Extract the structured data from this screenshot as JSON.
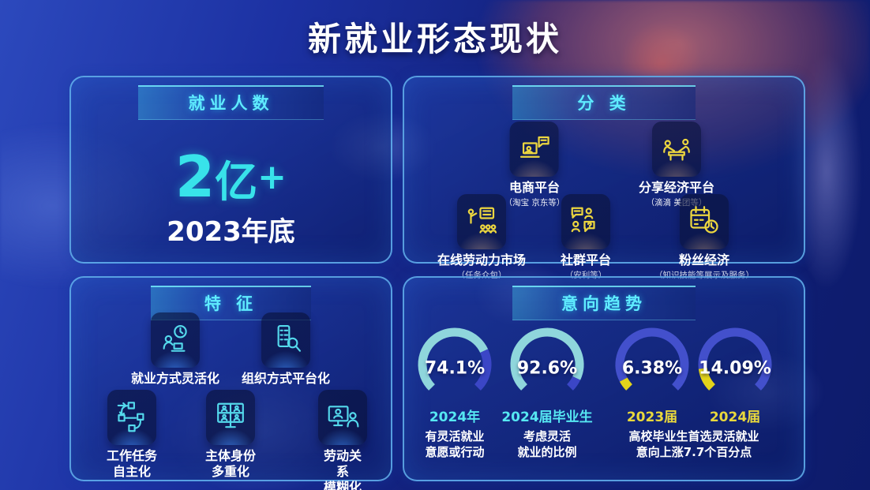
{
  "title": "新就业形态现状",
  "colors": {
    "accent_cyan": "#5FECFF",
    "number_cyan": "#38E3EA",
    "icon_yellow": "#ECD63F",
    "icon_cyan": "#54D9EC",
    "gauge_cyan": "#8FD6DC",
    "gauge_indigo": "#3B46C6",
    "gauge_yellow": "#E3D41A"
  },
  "panels": {
    "employment": {
      "header": "就业人数",
      "number_digit": "2",
      "number_unit": "亿",
      "number_suffix": "+",
      "caption": "2023年底"
    },
    "categories": {
      "header": "分 类",
      "items": [
        {
          "label": "电商平台",
          "sub": "（淘宝 京东等）",
          "icon": "ecommerce-platform-icon"
        },
        {
          "label": "分享经济平台",
          "sub": "（滴滴 美团等）",
          "icon": "sharing-economy-icon"
        },
        {
          "label": "在线劳动力市场",
          "sub": "（任务众包）",
          "icon": "online-labor-market-icon"
        },
        {
          "label": "社群平台",
          "sub": "（安利等）",
          "icon": "community-platform-icon"
        },
        {
          "label": "粉丝经济",
          "sub": "（知识技能等展示及服务）",
          "icon": "fan-economy-icon"
        }
      ]
    },
    "features": {
      "header": "特 征",
      "items": [
        {
          "label": "就业方式灵活化",
          "icon": "flexible-employment-icon"
        },
        {
          "label": "组织方式平台化",
          "icon": "platform-organization-icon"
        },
        {
          "label": "工作任务\n自主化",
          "icon": "task-autonomy-icon"
        },
        {
          "label": "主体身份\n多重化",
          "icon": "multiple-identity-icon"
        },
        {
          "label": "劳动关系\n模糊化",
          "icon": "blurred-labor-relation-icon"
        }
      ]
    },
    "trends": {
      "header": "意向趋势",
      "caption_left": "有灵活就业\n意愿或行动",
      "caption_mid": "考虑灵活\n就业的比例",
      "caption_right": "高校毕业生首选灵活就业\n意向上涨7.7个百分点"
    }
  },
  "chart_data": {
    "type": "gauge",
    "title": "意向趋势",
    "style": "270-degree donut gauges with gap at bottom",
    "range": [
      0,
      100
    ],
    "series": [
      {
        "name": "2024年 有灵活就业意愿或行动",
        "tick_label": "2024年",
        "value": 74.1,
        "display": "74.1%",
        "unit": "%",
        "color": "#8FD6DC",
        "track": "#3B46C6",
        "label_color": "#56E8F2"
      },
      {
        "name": "2024届毕业生 考虑灵活就业的比例",
        "tick_label": "2024届毕业生",
        "value": 92.6,
        "display": "92.6%",
        "unit": "%",
        "color": "#8FD6DC",
        "track": "#3B46C6",
        "label_color": "#56E8F2"
      },
      {
        "name": "2023届 高校毕业生首选灵活就业意向",
        "tick_label": "2023届",
        "value": 6.38,
        "display": "6.38%",
        "unit": "%",
        "color": "#E3D41A",
        "track": "#4350CC",
        "label_color": "#E9D83C"
      },
      {
        "name": "2024届 高校毕业生首选灵活就业意向",
        "tick_label": "2024届",
        "value": 14.09,
        "display": "14.09%",
        "unit": "%",
        "color": "#E3D41A",
        "track": "#4350CC",
        "label_color": "#E9D83C"
      }
    ],
    "annotation": "高校毕业生首选灵活就业意向上涨7.7个百分点",
    "related_stat": {
      "label": "就业人数",
      "value": "2亿+",
      "as_of": "2023年底"
    }
  }
}
